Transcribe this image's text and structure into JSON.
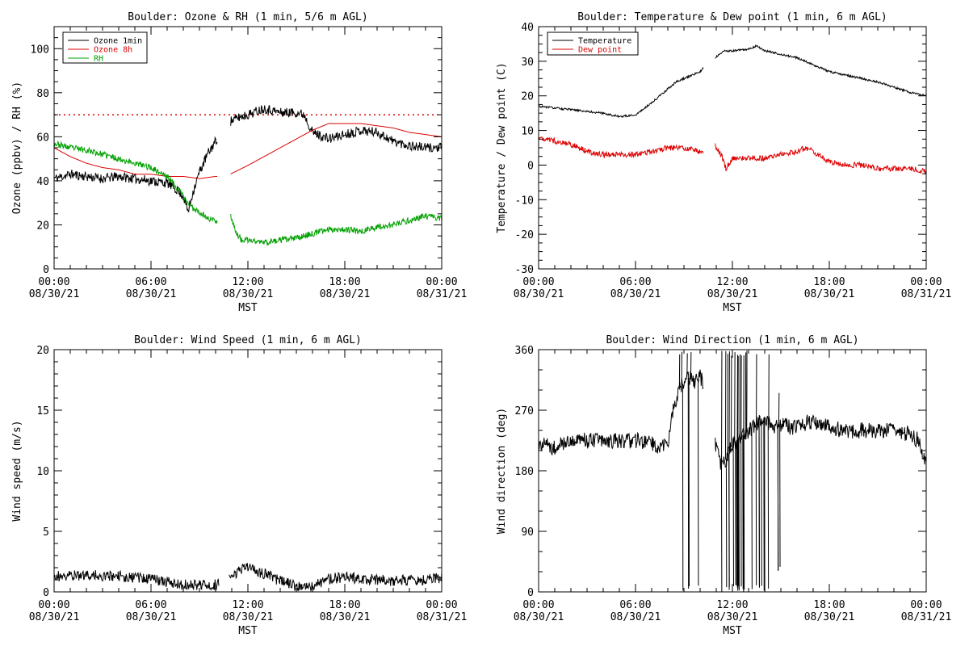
{
  "colors": {
    "black": "#000000",
    "red": "#dd0000",
    "green": "#00a000"
  },
  "chart_data": [
    {
      "id": "ozone",
      "type": "line",
      "title": "Boulder: Ozone & RH (1 min, 5/6 m AGL)",
      "xlabel": "MST",
      "ylabel": "Ozone (ppbv) / RH (%)",
      "x_tick_labels": [
        [
          "00:00",
          "08/30/21"
        ],
        [
          "06:00",
          "08/30/21"
        ],
        [
          "12:00",
          "08/30/21"
        ],
        [
          "18:00",
          "08/30/21"
        ],
        [
          "00:00",
          "08/31/21"
        ]
      ],
      "x_range_hours": [
        0,
        24
      ],
      "ylim": [
        0,
        110
      ],
      "y_ticks": [
        0,
        20,
        40,
        60,
        80,
        100
      ],
      "legend": {
        "position": "top-left",
        "entries": [
          "Ozone 1min",
          "Ozone 8h",
          "RH"
        ]
      },
      "reference_line": {
        "y": 70,
        "style": "dotted",
        "color": "red"
      },
      "gap_hours": [
        10.1,
        10.9
      ],
      "series": [
        {
          "name": "Ozone 1min",
          "color": "black",
          "noise": 2.2,
          "seed": 11,
          "points": [
            [
              0,
              41
            ],
            [
              1,
              43
            ],
            [
              2,
              42
            ],
            [
              3,
              41
            ],
            [
              4,
              42
            ],
            [
              5,
              41
            ],
            [
              6,
              40
            ],
            [
              7,
              39
            ],
            [
              7.6,
              36
            ],
            [
              8,
              33
            ],
            [
              8.3,
              26
            ],
            [
              8.6,
              35
            ],
            [
              9,
              44
            ],
            [
              9.5,
              52
            ],
            [
              10,
              58
            ],
            [
              10.1,
              59
            ],
            [
              10.9,
              67
            ],
            [
              11.5,
              69
            ],
            [
              12,
              70
            ],
            [
              13,
              73
            ],
            [
              14,
              71
            ],
            [
              15,
              71
            ],
            [
              15.5,
              70
            ],
            [
              16,
              62
            ],
            [
              17,
              59
            ],
            [
              18,
              61
            ],
            [
              19,
              63
            ],
            [
              20,
              62
            ],
            [
              21,
              58
            ],
            [
              22,
              56
            ],
            [
              23,
              55
            ],
            [
              24,
              55
            ]
          ]
        },
        {
          "name": "Ozone 8h",
          "color": "red",
          "noise": 0,
          "seed": 0,
          "points": [
            [
              0,
              55
            ],
            [
              1,
              51
            ],
            [
              2,
              48
            ],
            [
              3,
              46
            ],
            [
              4,
              45
            ],
            [
              5,
              43
            ],
            [
              6,
              43
            ],
            [
              7,
              42
            ],
            [
              8,
              42
            ],
            [
              9,
              41
            ],
            [
              10,
              42
            ],
            [
              10.1,
              42
            ],
            [
              10.9,
              43
            ],
            [
              12,
              47
            ],
            [
              13,
              51
            ],
            [
              14,
              55
            ],
            [
              15,
              59
            ],
            [
              16,
              63
            ],
            [
              17,
              66
            ],
            [
              18,
              66
            ],
            [
              19,
              66
            ],
            [
              20,
              65
            ],
            [
              21,
              64
            ],
            [
              22,
              62
            ],
            [
              23,
              61
            ],
            [
              24,
              60
            ]
          ]
        },
        {
          "name": "RH",
          "color": "green",
          "noise": 1.4,
          "seed": 23,
          "points": [
            [
              0,
              57
            ],
            [
              1,
              55
            ],
            [
              2,
              54
            ],
            [
              3,
              52
            ],
            [
              4,
              50
            ],
            [
              5,
              48
            ],
            [
              6,
              46
            ],
            [
              7,
              42
            ],
            [
              7.5,
              38
            ],
            [
              8,
              33
            ],
            [
              8.5,
              28
            ],
            [
              9,
              26
            ],
            [
              9.5,
              23
            ],
            [
              10,
              22
            ],
            [
              10.1,
              22
            ],
            [
              10.9,
              25
            ],
            [
              11.3,
              16
            ],
            [
              11.6,
              13
            ],
            [
              12,
              13
            ],
            [
              13,
              12
            ],
            [
              14,
              13
            ],
            [
              15,
              14
            ],
            [
              16,
              16
            ],
            [
              17,
              18
            ],
            [
              18,
              18
            ],
            [
              19,
              17
            ],
            [
              20,
              19
            ],
            [
              21,
              20
            ],
            [
              22,
              22
            ],
            [
              23,
              24
            ],
            [
              24,
              23
            ]
          ]
        }
      ]
    },
    {
      "id": "temp",
      "type": "line",
      "title": "Boulder: Temperature & Dew point (1 min, 6 m AGL)",
      "xlabel": "MST",
      "ylabel": "Temperature / Dew point (C)",
      "x_tick_labels": [
        [
          "00:00",
          "08/30/21"
        ],
        [
          "06:00",
          "08/30/21"
        ],
        [
          "12:00",
          "08/30/21"
        ],
        [
          "18:00",
          "08/30/21"
        ],
        [
          "00:00",
          "08/31/21"
        ]
      ],
      "x_range_hours": [
        0,
        24
      ],
      "ylim": [
        -30,
        40
      ],
      "y_ticks": [
        -30,
        -20,
        -10,
        0,
        10,
        20,
        30,
        40
      ],
      "legend": {
        "position": "top-left",
        "entries": [
          "Temperature",
          "Dew point"
        ]
      },
      "gap_hours": [
        10.2,
        10.9
      ],
      "series": [
        {
          "name": "Temperature",
          "color": "black",
          "noise": 0.3,
          "seed": 31,
          "points": [
            [
              0,
              17
            ],
            [
              1,
              16.5
            ],
            [
              2,
              16
            ],
            [
              3,
              15.5
            ],
            [
              4,
              15
            ],
            [
              5,
              14
            ],
            [
              6,
              14.5
            ],
            [
              7,
              18
            ],
            [
              8,
              22
            ],
            [
              8.5,
              24
            ],
            [
              9,
              25
            ],
            [
              9.5,
              26
            ],
            [
              10,
              27
            ],
            [
              10.2,
              28
            ],
            [
              10.9,
              31
            ],
            [
              11.5,
              33
            ],
            [
              12,
              33
            ],
            [
              13,
              33.5
            ],
            [
              13.5,
              34.5
            ],
            [
              14,
              33
            ],
            [
              15,
              32
            ],
            [
              16,
              31
            ],
            [
              17,
              29
            ],
            [
              18,
              27
            ],
            [
              19,
              26
            ],
            [
              20,
              25
            ],
            [
              21,
              24
            ],
            [
              22,
              22.5
            ],
            [
              23,
              21
            ],
            [
              24,
              20
            ]
          ]
        },
        {
          "name": "Dew point",
          "color": "red",
          "noise": 0.8,
          "seed": 47,
          "points": [
            [
              0,
              8
            ],
            [
              1,
              7
            ],
            [
              2,
              6
            ],
            [
              3,
              4
            ],
            [
              4,
              3
            ],
            [
              5,
              3
            ],
            [
              6,
              3
            ],
            [
              7,
              4
            ],
            [
              8,
              5
            ],
            [
              9,
              5
            ],
            [
              10,
              4
            ],
            [
              10.2,
              4
            ],
            [
              10.9,
              6
            ],
            [
              11.3,
              3
            ],
            [
              11.6,
              -1
            ],
            [
              12,
              2
            ],
            [
              13,
              2
            ],
            [
              14,
              2
            ],
            [
              15,
              3
            ],
            [
              16,
              4
            ],
            [
              16.5,
              5
            ],
            [
              17,
              4
            ],
            [
              18,
              1
            ],
            [
              19,
              0
            ],
            [
              20,
              0
            ],
            [
              21,
              -1
            ],
            [
              22,
              -1
            ],
            [
              23,
              -1
            ],
            [
              24,
              -2
            ]
          ]
        }
      ]
    },
    {
      "id": "wspd",
      "type": "line",
      "title": "Boulder: Wind Speed (1 min, 6 m AGL)",
      "xlabel": "MST",
      "ylabel": "Wind speed (m/s)",
      "x_tick_labels": [
        [
          "00:00",
          "08/30/21"
        ],
        [
          "06:00",
          "08/30/21"
        ],
        [
          "12:00",
          "08/30/21"
        ],
        [
          "18:00",
          "08/30/21"
        ],
        [
          "00:00",
          "08/31/21"
        ]
      ],
      "x_range_hours": [
        0,
        24
      ],
      "ylim": [
        0,
        20
      ],
      "y_ticks": [
        0,
        5,
        10,
        15,
        20
      ],
      "gap_hours": [
        10.2,
        10.8
      ],
      "series": [
        {
          "name": "",
          "color": "black",
          "noise": 0.45,
          "seed": 59,
          "points": [
            [
              0,
              1.3
            ],
            [
              2,
              1.4
            ],
            [
              4,
              1.3
            ],
            [
              6,
              1.1
            ],
            [
              7,
              0.8
            ],
            [
              8,
              0.6
            ],
            [
              9,
              0.6
            ],
            [
              10,
              0.6
            ],
            [
              10.2,
              0.6
            ],
            [
              10.8,
              1.2
            ],
            [
              11.5,
              1.8
            ],
            [
              12,
              2.0
            ],
            [
              13,
              1.5
            ],
            [
              14,
              0.9
            ],
            [
              15,
              0.5
            ],
            [
              16,
              0.4
            ],
            [
              17,
              1.1
            ],
            [
              18,
              1.2
            ],
            [
              19,
              1.1
            ],
            [
              20,
              1.0
            ],
            [
              21,
              0.9
            ],
            [
              22,
              1.0
            ],
            [
              23,
              1.0
            ],
            [
              24,
              1.2
            ]
          ]
        }
      ]
    },
    {
      "id": "wdir",
      "type": "line",
      "title": "Boulder: Wind Direction (1 min, 6 m AGL)",
      "xlabel": "MST",
      "ylabel": "Wind direction (deg)",
      "x_tick_labels": [
        [
          "00:00",
          "08/30/21"
        ],
        [
          "06:00",
          "08/30/21"
        ],
        [
          "12:00",
          "08/30/21"
        ],
        [
          "18:00",
          "08/30/21"
        ],
        [
          "00:00",
          "08/31/21"
        ]
      ],
      "x_range_hours": [
        0,
        24
      ],
      "ylim": [
        0,
        360
      ],
      "y_ticks": [
        0,
        90,
        180,
        270,
        360
      ],
      "gap_hours": [
        10.2,
        10.9
      ],
      "series": [
        {
          "name": "",
          "color": "black",
          "noise": 12,
          "seed": 71,
          "points": [
            [
              0,
              220
            ],
            [
              1,
              215
            ],
            [
              2,
              225
            ],
            [
              3,
              225
            ],
            [
              4,
              225
            ],
            [
              5,
              225
            ],
            [
              6,
              225
            ],
            [
              7,
              220
            ],
            [
              7.5,
              215
            ],
            [
              8,
              220
            ],
            [
              8.3,
              270
            ],
            [
              8.7,
              300
            ],
            [
              9.2,
              320
            ],
            [
              9.7,
              310
            ],
            [
              10,
              320
            ],
            [
              10.2,
              310
            ],
            [
              10.9,
              220
            ],
            [
              11.3,
              190
            ],
            [
              11.7,
              200
            ],
            [
              12,
              220
            ],
            [
              12.5,
              230
            ],
            [
              13,
              240
            ],
            [
              13.5,
              250
            ],
            [
              14,
              260
            ],
            [
              14.5,
              240
            ],
            [
              15,
              250
            ],
            [
              15.5,
              245
            ],
            [
              16,
              245
            ],
            [
              17,
              255
            ],
            [
              18,
              245
            ],
            [
              19,
              240
            ],
            [
              20,
              240
            ],
            [
              21,
              240
            ],
            [
              22,
              240
            ],
            [
              23,
              235
            ],
            [
              23.5,
              225
            ],
            [
              24,
              190
            ]
          ]
        }
      ],
      "spikes": [
        {
          "hour_range": [
            8.4,
            10.0
          ],
          "count": 8,
          "low": 0,
          "high": 360
        },
        {
          "hour_range": [
            11.3,
            14.4
          ],
          "count": 40,
          "low": 0,
          "high": 360
        },
        {
          "hour_range": [
            14.7,
            15.2
          ],
          "count": 4,
          "low": 30,
          "high": 300
        }
      ]
    }
  ]
}
